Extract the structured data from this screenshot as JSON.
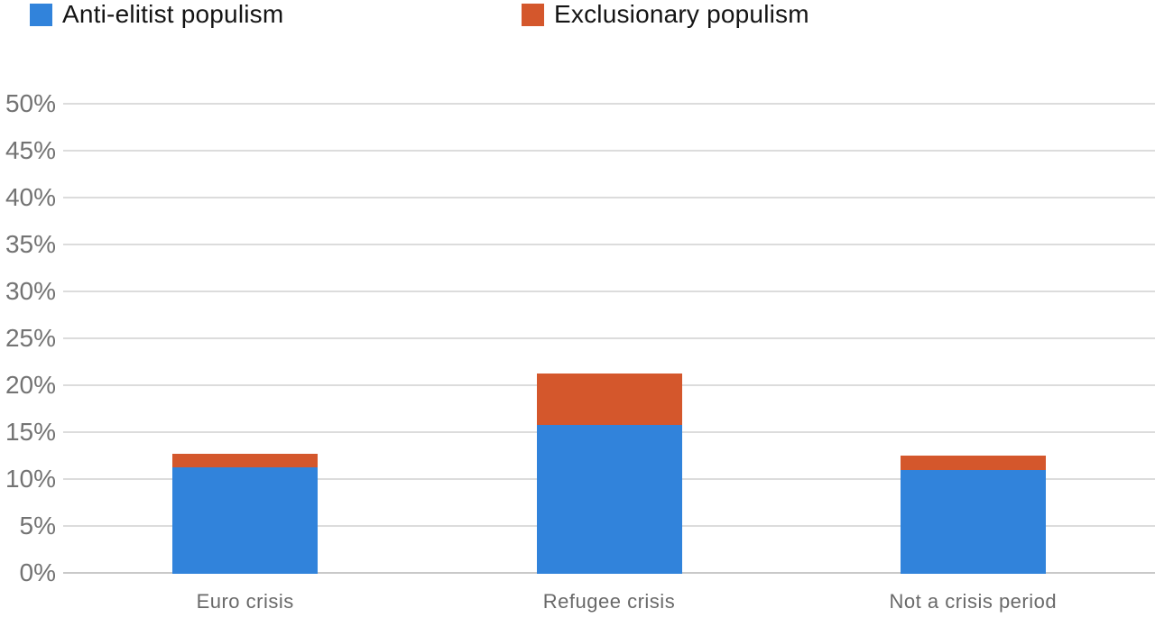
{
  "chart_data": {
    "type": "bar",
    "stacked": true,
    "title": "",
    "xlabel": "",
    "ylabel": "",
    "categories": [
      "Euro crisis",
      "Refugee crisis",
      "Not a crisis period"
    ],
    "series": [
      {
        "name": "Anti-elitist populism",
        "color": "#3183DB",
        "values": [
          11.3,
          15.9,
          11.1
        ]
      },
      {
        "name": "Exclusionary populism",
        "color": "#D4572C",
        "values": [
          1.5,
          5.4,
          1.5
        ]
      }
    ],
    "stack_totals": [
      12.8,
      21.3,
      12.6
    ],
    "ylim": [
      0,
      50
    ],
    "ytick_values": [
      0,
      5,
      10,
      15,
      20,
      25,
      30,
      35,
      40,
      45,
      50
    ],
    "yticks": [
      "0%",
      "5%",
      "10%",
      "15%",
      "20%",
      "25%",
      "30%",
      "35%",
      "40%",
      "45%",
      "50%"
    ],
    "grid": "horizontal",
    "legend_position": "top",
    "gridline_color": "#dcdcdc",
    "axis_line_color": "#c9c9c9",
    "tick_label_color": "#737373",
    "category_label_color": "#696969"
  }
}
